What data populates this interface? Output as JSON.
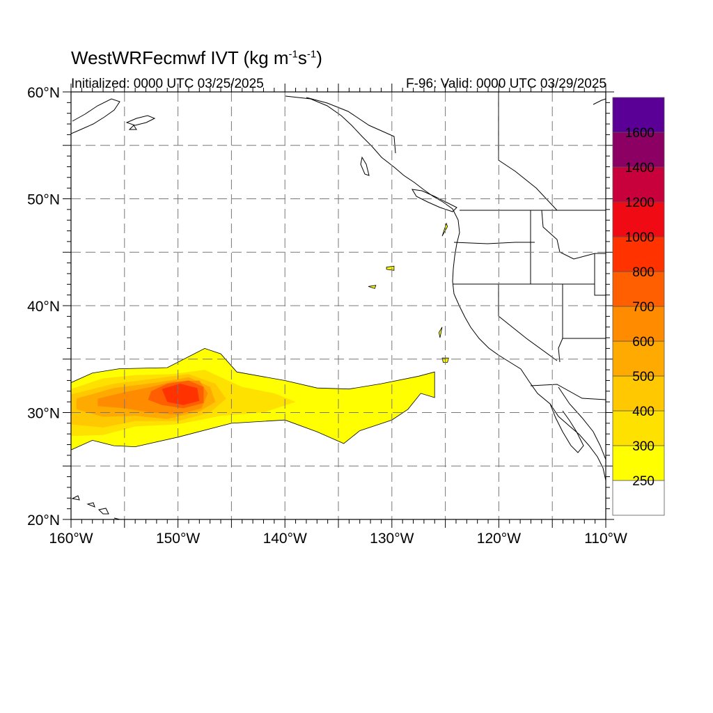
{
  "title": {
    "model": "WestWRFecmwf",
    "variable": "IVT",
    "units_prefix": "(kg m",
    "units_exp1": "-1",
    "units_mid": "s",
    "units_exp2": "-1",
    "units_suffix": ")"
  },
  "initialized_label": "Initialized: 0000 UTC 03/25/2025",
  "valid_label": "F-96: Valid: 0000 UTC 03/29/2025",
  "map": {
    "lon_range": [
      -160,
      -110
    ],
    "lat_range": [
      20,
      60
    ],
    "lon_ticks": [
      {
        "value": -160,
        "label": "160°W"
      },
      {
        "value": -150,
        "label": "150°W"
      },
      {
        "value": -140,
        "label": "140°W"
      },
      {
        "value": -130,
        "label": "130°W"
      },
      {
        "value": -120,
        "label": "120°W"
      },
      {
        "value": -110,
        "label": "110°W"
      }
    ],
    "lat_ticks": [
      {
        "value": 20,
        "label": "20°N"
      },
      {
        "value": 30,
        "label": "30°N"
      },
      {
        "value": 40,
        "label": "40°N"
      },
      {
        "value": 50,
        "label": "50°N"
      },
      {
        "value": 60,
        "label": "60°N"
      }
    ],
    "grid_lon_step": 5,
    "grid_lat_step": 5
  },
  "colorbar": {
    "levels": [
      250,
      300,
      400,
      500,
      600,
      700,
      800,
      1000,
      1200,
      1400,
      1600
    ],
    "colors": [
      "#ffffff",
      "#ffff00",
      "#ffe100",
      "#ffc800",
      "#ffaa00",
      "#ff8c00",
      "#ff5f00",
      "#ff3200",
      "#f00a14",
      "#c8003c",
      "#8c0064",
      "#5a0096"
    ]
  },
  "ivt_field": [
    {
      "level": 250,
      "color": "#ffff00",
      "polygon": [
        [
          -160,
          32.8
        ],
        [
          -158,
          33.7
        ],
        [
          -155.5,
          34.1
        ],
        [
          -151,
          34.2
        ],
        [
          -147.5,
          36
        ],
        [
          -146,
          35.5
        ],
        [
          -144.5,
          33.8
        ],
        [
          -140,
          33
        ],
        [
          -137,
          32.3
        ],
        [
          -134,
          32.2
        ],
        [
          -131,
          32.7
        ],
        [
          -127.5,
          33.4
        ],
        [
          -126,
          33.8
        ],
        [
          -126,
          31.4
        ],
        [
          -127.3,
          31.8
        ],
        [
          -128.5,
          30.3
        ],
        [
          -130,
          29.3
        ],
        [
          -133,
          28.3
        ],
        [
          -134.5,
          27.1
        ],
        [
          -137,
          28.2
        ],
        [
          -140,
          29.3
        ],
        [
          -145,
          29
        ],
        [
          -150,
          27.7
        ],
        [
          -154,
          26.8
        ],
        [
          -156,
          26.9
        ],
        [
          -158,
          27.4
        ],
        [
          -160,
          26.5
        ]
      ]
    },
    {
      "level": 300,
      "color": "#ffe100",
      "polygon": [
        [
          -160,
          32.2
        ],
        [
          -157,
          33.2
        ],
        [
          -154,
          33.5
        ],
        [
          -150.5,
          33.6
        ],
        [
          -147.5,
          34
        ],
        [
          -146,
          33.3
        ],
        [
          -144,
          32.4
        ],
        [
          -141,
          31.8
        ],
        [
          -139,
          31
        ],
        [
          -142,
          30
        ],
        [
          -146,
          29.7
        ],
        [
          -150,
          28.9
        ],
        [
          -154,
          28.7
        ],
        [
          -157,
          27.9
        ],
        [
          -160,
          27.8
        ]
      ]
    },
    {
      "level": 400,
      "color": "#ffc800",
      "polygon": [
        [
          -160,
          31.7
        ],
        [
          -156,
          32.7
        ],
        [
          -152,
          33.2
        ],
        [
          -149,
          33.6
        ],
        [
          -146.5,
          32.7
        ],
        [
          -145.5,
          31.3
        ],
        [
          -147,
          30
        ],
        [
          -150,
          29.2
        ],
        [
          -154,
          29.2
        ],
        [
          -157,
          28.6
        ],
        [
          -160,
          28.9
        ]
      ]
    },
    {
      "level": 500,
      "color": "#ffaa00",
      "polygon": [
        [
          -159.5,
          31.3
        ],
        [
          -156,
          32.3
        ],
        [
          -152,
          32.8
        ],
        [
          -149,
          33.3
        ],
        [
          -147,
          32.4
        ],
        [
          -146.5,
          31
        ],
        [
          -148,
          30.1
        ],
        [
          -151,
          29.4
        ],
        [
          -154,
          29.7
        ],
        [
          -157,
          29.6
        ],
        [
          -159.5,
          30.3
        ]
      ]
    },
    {
      "level": 600,
      "color": "#ff8c00",
      "polygon": [
        [
          -157.5,
          31.3
        ],
        [
          -155,
          31.9
        ],
        [
          -152.5,
          32.4
        ],
        [
          -150.5,
          32.9
        ],
        [
          -148,
          33
        ],
        [
          -147.2,
          31.8
        ],
        [
          -147.8,
          30.4
        ],
        [
          -150,
          29.8
        ],
        [
          -152.5,
          30
        ],
        [
          -155,
          30.4
        ],
        [
          -157.5,
          30.6
        ]
      ]
    },
    {
      "level": 700,
      "color": "#ff5f00",
      "polygon": [
        [
          -152.5,
          32
        ],
        [
          -151,
          32.7
        ],
        [
          -149,
          33
        ],
        [
          -147.6,
          32.4
        ],
        [
          -147.6,
          30.9
        ],
        [
          -149.5,
          30.4
        ],
        [
          -151.5,
          30.7
        ],
        [
          -152.8,
          31.2
        ]
      ]
    },
    {
      "level": 800,
      "color": "#ff3200",
      "polygon": [
        [
          -151.5,
          32.2
        ],
        [
          -149.8,
          32.7
        ],
        [
          -148.2,
          32.3
        ],
        [
          -148,
          31.1
        ],
        [
          -149.5,
          30.7
        ],
        [
          -151,
          31
        ]
      ]
    },
    {
      "level": 250,
      "color": "#ffff00",
      "polygon": [
        [
          -125.3,
          35.1
        ],
        [
          -124.7,
          35.1
        ],
        [
          -124.8,
          34.7
        ],
        [
          -125.2,
          34.7
        ]
      ]
    },
    {
      "level": 250,
      "color": "#ffff00",
      "polygon": [
        [
          -125.6,
          37.5
        ],
        [
          -125.3,
          38.0
        ],
        [
          -125.5,
          37.0
        ]
      ]
    },
    {
      "level": 250,
      "color": "#ffff00",
      "polygon": [
        [
          -124.8,
          47.4
        ],
        [
          -125.3,
          46.5
        ],
        [
          -124.9,
          47.7
        ]
      ]
    },
    {
      "level": 250,
      "color": "#ffff00",
      "polygon": [
        [
          -130.5,
          43.6
        ],
        [
          -129.8,
          43.7
        ],
        [
          -129.8,
          43.3
        ],
        [
          -130.5,
          43.4
        ]
      ]
    },
    {
      "level": 250,
      "color": "#ffff00",
      "polygon": [
        [
          -132.2,
          41.8
        ],
        [
          -131.5,
          41.9
        ],
        [
          -131.6,
          41.6
        ]
      ]
    }
  ]
}
